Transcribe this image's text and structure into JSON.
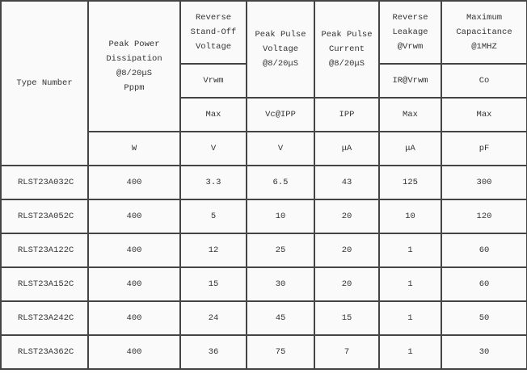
{
  "header": {
    "type_number": "Type Number",
    "peak_power": "Peak Power\nDissipation\n@8/20μS\nPppm",
    "reverse_standoff": "Reverse\nStand-Off\nVoltage",
    "peak_pulse_voltage": "Peak Pulse\nVoltage\n@8/20μS",
    "peak_pulse_current": "Peak Pulse\nCurrent\n@8/20μS",
    "reverse_leakage": "Reverse\nLeakage\n@Vrwm",
    "max_capacitance": "Maximum\nCapacitance\n@1MHZ",
    "symbols": {
      "vrwm": "Vrwm",
      "ir": "IR@Vrwm",
      "co": "Co"
    },
    "conditions": {
      "standoff": "Max",
      "voltage": "Vc@IPP",
      "current": "IPP",
      "leakage": "Max",
      "capacitance": "Max"
    },
    "units": {
      "power": "W",
      "standoff": "V",
      "voltage": "V",
      "current": "μA",
      "leakage": "μA",
      "capacitance": "pF"
    }
  },
  "rows": [
    [
      "RLST23A032C",
      "400",
      "3.3",
      "6.5",
      "43",
      "125",
      "300"
    ],
    [
      "RLST23A052C",
      "400",
      "5",
      "10",
      "20",
      "10",
      "120"
    ],
    [
      "RLST23A122C",
      "400",
      "12",
      "25",
      "20",
      "1",
      "60"
    ],
    [
      "RLST23A152C",
      "400",
      "15",
      "30",
      "20",
      "1",
      "60"
    ],
    [
      "RLST23A242C",
      "400",
      "24",
      "45",
      "15",
      "1",
      "50"
    ],
    [
      "RLST23A362C",
      "400",
      "36",
      "75",
      "7",
      "1",
      "30"
    ]
  ]
}
